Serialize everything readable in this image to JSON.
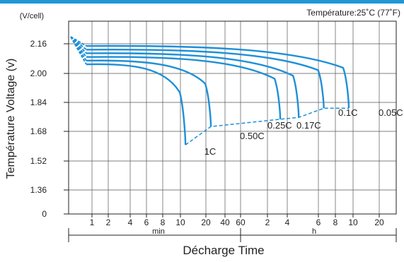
{
  "chart_data": {
    "type": "line",
    "temperature_note": "Température:25˚C (77˚F)",
    "unit_label": "(V/cell)",
    "ylabel": "Température Voltage (v)",
    "xlabel": "Décharge  Time",
    "y_ticks": [
      "2.16",
      "2.00",
      "1.84",
      "1.68",
      "1.52",
      "1.36",
      "0"
    ],
    "x_ticks": [
      "1",
      "2",
      "4",
      "6",
      "8",
      "10",
      "20",
      "40",
      "60",
      "2",
      "4",
      "6",
      "8",
      "10",
      "20"
    ],
    "x_group_labels": [
      "min",
      "h"
    ],
    "x_axis_scale": "log",
    "initial_voltage": 2.2,
    "series": [
      {
        "name": "0.05C",
        "plateau_v": 2.15,
        "end_time": "20 h",
        "end_v": 1.81
      },
      {
        "name": "0.1C",
        "plateau_v": 2.13,
        "end_time": "10 h",
        "end_v": 1.81
      },
      {
        "name": "0.17C",
        "plateau_v": 2.11,
        "end_time": "5 h",
        "end_v": 1.76
      },
      {
        "name": "0.25C",
        "plateau_v": 2.09,
        "end_time": "3 h",
        "end_v": 1.75
      },
      {
        "name": "0.50C",
        "plateau_v": 2.07,
        "end_time": "60 min",
        "end_v": 1.71
      },
      {
        "name": "1C",
        "plateau_v": 2.05,
        "end_time": "25 min",
        "end_v": 1.61
      }
    ],
    "grid": true
  },
  "colors": {
    "curve": "#1e90d8",
    "accent_bar": "#1e98d6",
    "text": "#222222"
  }
}
